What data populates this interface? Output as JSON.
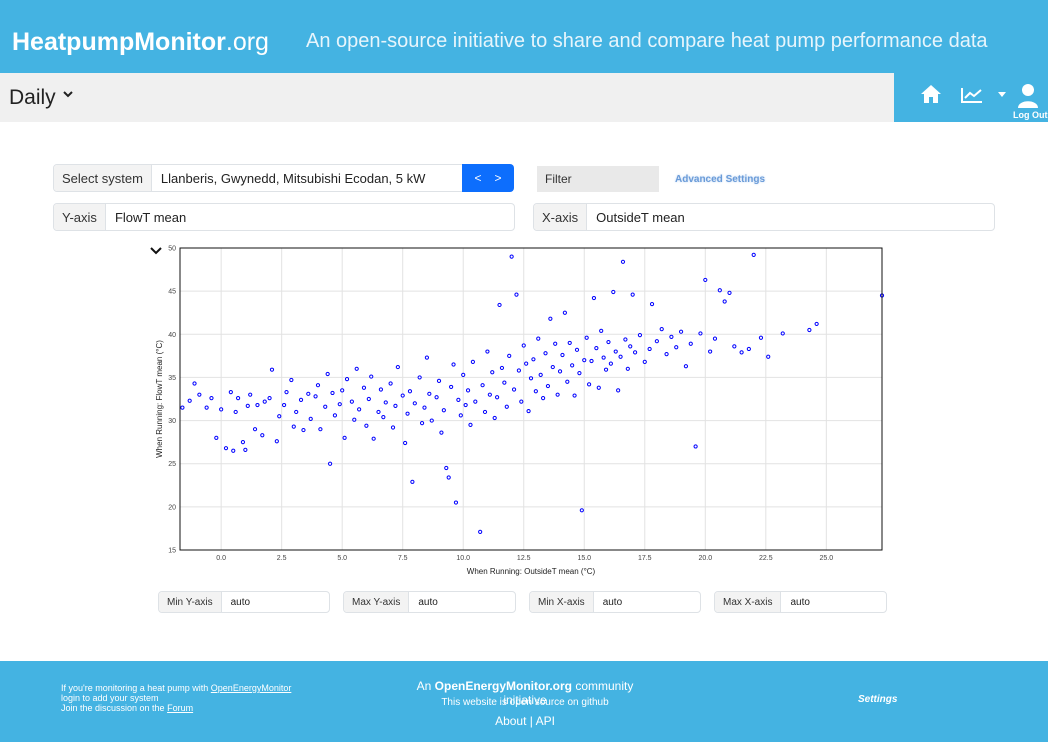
{
  "header": {
    "brand_main": "HeatpumpMonitor",
    "brand_domain": ".org",
    "tagline": "An open-source initiative to share and compare heat pump performance data"
  },
  "subbar": {
    "view_title": "Daily",
    "logout_label": "Log Out"
  },
  "controls": {
    "select_system_label": "Select system",
    "select_system_value": "Llanberis, Gwynedd, Mitsubishi Ecodan, 5 kW",
    "prev_label": "<",
    "next_label": ">",
    "filter_placeholder": "Filter",
    "advanced_settings": "Advanced Settings",
    "y_axis_label": "Y-axis",
    "y_axis_value": "FlowT mean",
    "x_axis_label": "X-axis",
    "x_axis_value": "OutsideT mean"
  },
  "axis_limits": {
    "min_y_label": "Min Y-axis",
    "min_y_value": "auto",
    "max_y_label": "Max Y-axis",
    "max_y_value": "auto",
    "min_x_label": "Min X-axis",
    "min_x_value": "auto",
    "max_x_label": "Max X-axis",
    "max_x_value": "auto"
  },
  "chart_data": {
    "type": "scatter",
    "xlabel": "When Running: OutsideT mean (°C)",
    "ylabel": "When Running: FlowT mean (°C)",
    "xlim": [
      -1.7,
      27.3
    ],
    "ylim": [
      15,
      50
    ],
    "x_ticks": [
      "0.0",
      "2.5",
      "5.0",
      "7.5",
      "10.0",
      "12.5",
      "15.0",
      "17.5",
      "20.0",
      "22.5",
      "25.0"
    ],
    "x_tick_values": [
      0,
      2.5,
      5,
      7.5,
      10,
      12.5,
      15,
      17.5,
      20,
      22.5,
      25
    ],
    "y_ticks": [
      "15",
      "20",
      "25",
      "30",
      "35",
      "40",
      "45",
      "50"
    ],
    "y_tick_values": [
      15,
      20,
      25,
      30,
      35,
      40,
      45,
      50
    ],
    "grid": true,
    "marker_color": "#0000ff",
    "points": [
      [
        -1.6,
        31.5
      ],
      [
        -1.3,
        32.3
      ],
      [
        -1.1,
        34.3
      ],
      [
        -0.9,
        33.0
      ],
      [
        -0.6,
        31.5
      ],
      [
        -0.4,
        32.6
      ],
      [
        -0.2,
        28.0
      ],
      [
        0.0,
        31.3
      ],
      [
        0.2,
        26.8
      ],
      [
        0.4,
        33.3
      ],
      [
        0.5,
        26.5
      ],
      [
        0.6,
        31.0
      ],
      [
        0.7,
        32.6
      ],
      [
        0.9,
        27.5
      ],
      [
        1.0,
        26.6
      ],
      [
        1.1,
        31.7
      ],
      [
        1.2,
        33.0
      ],
      [
        1.4,
        29.0
      ],
      [
        1.5,
        31.8
      ],
      [
        1.7,
        28.3
      ],
      [
        1.8,
        32.2
      ],
      [
        2.0,
        32.6
      ],
      [
        2.1,
        35.9
      ],
      [
        2.3,
        27.6
      ],
      [
        2.4,
        30.5
      ],
      [
        2.6,
        31.8
      ],
      [
        2.7,
        33.3
      ],
      [
        2.9,
        34.7
      ],
      [
        3.0,
        29.3
      ],
      [
        3.1,
        31.0
      ],
      [
        3.3,
        32.4
      ],
      [
        3.4,
        28.9
      ],
      [
        3.6,
        33.1
      ],
      [
        3.7,
        30.2
      ],
      [
        3.9,
        32.8
      ],
      [
        4.0,
        34.1
      ],
      [
        4.1,
        29.0
      ],
      [
        4.3,
        31.6
      ],
      [
        4.4,
        35.4
      ],
      [
        4.5,
        25.0
      ],
      [
        4.6,
        33.2
      ],
      [
        4.7,
        30.6
      ],
      [
        4.9,
        31.9
      ],
      [
        5.0,
        33.5
      ],
      [
        5.1,
        28.0
      ],
      [
        5.2,
        34.8
      ],
      [
        5.4,
        32.2
      ],
      [
        5.5,
        30.1
      ],
      [
        5.6,
        36.0
      ],
      [
        5.7,
        31.3
      ],
      [
        5.9,
        33.8
      ],
      [
        6.0,
        29.4
      ],
      [
        6.1,
        32.5
      ],
      [
        6.2,
        35.1
      ],
      [
        6.3,
        27.9
      ],
      [
        6.5,
        31.0
      ],
      [
        6.6,
        33.6
      ],
      [
        6.7,
        30.4
      ],
      [
        6.8,
        32.1
      ],
      [
        7.0,
        34.3
      ],
      [
        7.1,
        29.2
      ],
      [
        7.2,
        31.7
      ],
      [
        7.3,
        36.2
      ],
      [
        7.5,
        32.9
      ],
      [
        7.6,
        27.4
      ],
      [
        7.7,
        30.8
      ],
      [
        7.8,
        33.4
      ],
      [
        7.9,
        22.9
      ],
      [
        8.0,
        32.0
      ],
      [
        8.2,
        35.0
      ],
      [
        8.3,
        29.7
      ],
      [
        8.4,
        31.5
      ],
      [
        8.5,
        37.3
      ],
      [
        8.6,
        33.1
      ],
      [
        8.7,
        30.0
      ],
      [
        8.9,
        32.7
      ],
      [
        9.0,
        34.6
      ],
      [
        9.1,
        28.6
      ],
      [
        9.2,
        31.2
      ],
      [
        9.3,
        24.5
      ],
      [
        9.4,
        23.4
      ],
      [
        9.5,
        33.9
      ],
      [
        9.6,
        36.5
      ],
      [
        9.7,
        20.5
      ],
      [
        9.8,
        32.4
      ],
      [
        9.9,
        30.6
      ],
      [
        10.0,
        35.3
      ],
      [
        10.1,
        31.8
      ],
      [
        10.2,
        33.5
      ],
      [
        10.3,
        29.5
      ],
      [
        10.4,
        36.8
      ],
      [
        10.5,
        32.2
      ],
      [
        10.7,
        17.1
      ],
      [
        10.8,
        34.1
      ],
      [
        10.9,
        31.0
      ],
      [
        11.0,
        38.0
      ],
      [
        11.1,
        33.0
      ],
      [
        11.2,
        35.6
      ],
      [
        11.3,
        30.3
      ],
      [
        11.4,
        32.7
      ],
      [
        11.5,
        43.4
      ],
      [
        11.6,
        36.1
      ],
      [
        11.7,
        34.4
      ],
      [
        11.8,
        31.6
      ],
      [
        11.9,
        37.5
      ],
      [
        12.0,
        49.0
      ],
      [
        12.1,
        33.6
      ],
      [
        12.2,
        44.6
      ],
      [
        12.3,
        35.8
      ],
      [
        12.4,
        32.2
      ],
      [
        12.5,
        38.7
      ],
      [
        12.6,
        36.6
      ],
      [
        12.7,
        31.1
      ],
      [
        12.8,
        34.9
      ],
      [
        12.9,
        37.1
      ],
      [
        13.0,
        33.4
      ],
      [
        13.1,
        39.5
      ],
      [
        13.2,
        35.3
      ],
      [
        13.3,
        32.6
      ],
      [
        13.4,
        37.8
      ],
      [
        13.5,
        34.0
      ],
      [
        13.6,
        41.8
      ],
      [
        13.7,
        36.2
      ],
      [
        13.8,
        38.9
      ],
      [
        13.9,
        33.0
      ],
      [
        14.0,
        35.7
      ],
      [
        14.1,
        37.6
      ],
      [
        14.2,
        42.5
      ],
      [
        14.3,
        34.5
      ],
      [
        14.4,
        39.0
      ],
      [
        14.5,
        36.4
      ],
      [
        14.6,
        32.9
      ],
      [
        14.7,
        38.2
      ],
      [
        14.8,
        35.5
      ],
      [
        14.9,
        19.6
      ],
      [
        15.0,
        37.0
      ],
      [
        15.1,
        39.6
      ],
      [
        15.2,
        34.2
      ],
      [
        15.3,
        36.9
      ],
      [
        15.4,
        44.2
      ],
      [
        15.5,
        38.4
      ],
      [
        15.6,
        33.8
      ],
      [
        15.7,
        40.4
      ],
      [
        15.8,
        37.3
      ],
      [
        15.9,
        35.9
      ],
      [
        16.0,
        39.1
      ],
      [
        16.1,
        36.6
      ],
      [
        16.2,
        44.9
      ],
      [
        16.3,
        38.0
      ],
      [
        16.4,
        33.5
      ],
      [
        16.5,
        37.4
      ],
      [
        16.6,
        48.4
      ],
      [
        16.7,
        39.4
      ],
      [
        16.8,
        36.0
      ],
      [
        16.9,
        38.6
      ],
      [
        17.0,
        44.6
      ],
      [
        17.1,
        37.9
      ],
      [
        17.3,
        39.9
      ],
      [
        17.5,
        36.8
      ],
      [
        17.7,
        38.3
      ],
      [
        17.8,
        43.5
      ],
      [
        18.0,
        39.2
      ],
      [
        18.2,
        40.6
      ],
      [
        18.4,
        37.7
      ],
      [
        18.6,
        39.7
      ],
      [
        18.8,
        38.5
      ],
      [
        19.0,
        40.3
      ],
      [
        19.2,
        36.3
      ],
      [
        19.4,
        38.9
      ],
      [
        19.6,
        27.0
      ],
      [
        19.8,
        40.1
      ],
      [
        20.0,
        46.3
      ],
      [
        20.2,
        38.0
      ],
      [
        20.4,
        39.5
      ],
      [
        20.6,
        45.1
      ],
      [
        20.8,
        43.8
      ],
      [
        21.0,
        44.8
      ],
      [
        21.2,
        38.6
      ],
      [
        21.5,
        37.9
      ],
      [
        21.8,
        38.3
      ],
      [
        22.0,
        49.2
      ],
      [
        22.3,
        39.6
      ],
      [
        22.6,
        37.4
      ],
      [
        23.2,
        40.1
      ],
      [
        24.3,
        40.5
      ],
      [
        24.6,
        41.2
      ],
      [
        27.3,
        44.5
      ]
    ]
  },
  "footer": {
    "left_line1_pre": "If you're monitoring a heat pump with ",
    "left_line1_link": "OpenEnergyMonitor",
    "left_line2": "login to add your system",
    "left_line3_pre": "Join the discussion on the ",
    "left_line3_link": "Forum",
    "center_an": "An ",
    "center_brand": "OpenEnergyMonitor.org",
    "center_rest": " community initiative",
    "center_line2": "This website is open source on github",
    "center_about": "About",
    "center_sep": " | ",
    "center_api": "API",
    "settings_label": "Settings"
  }
}
